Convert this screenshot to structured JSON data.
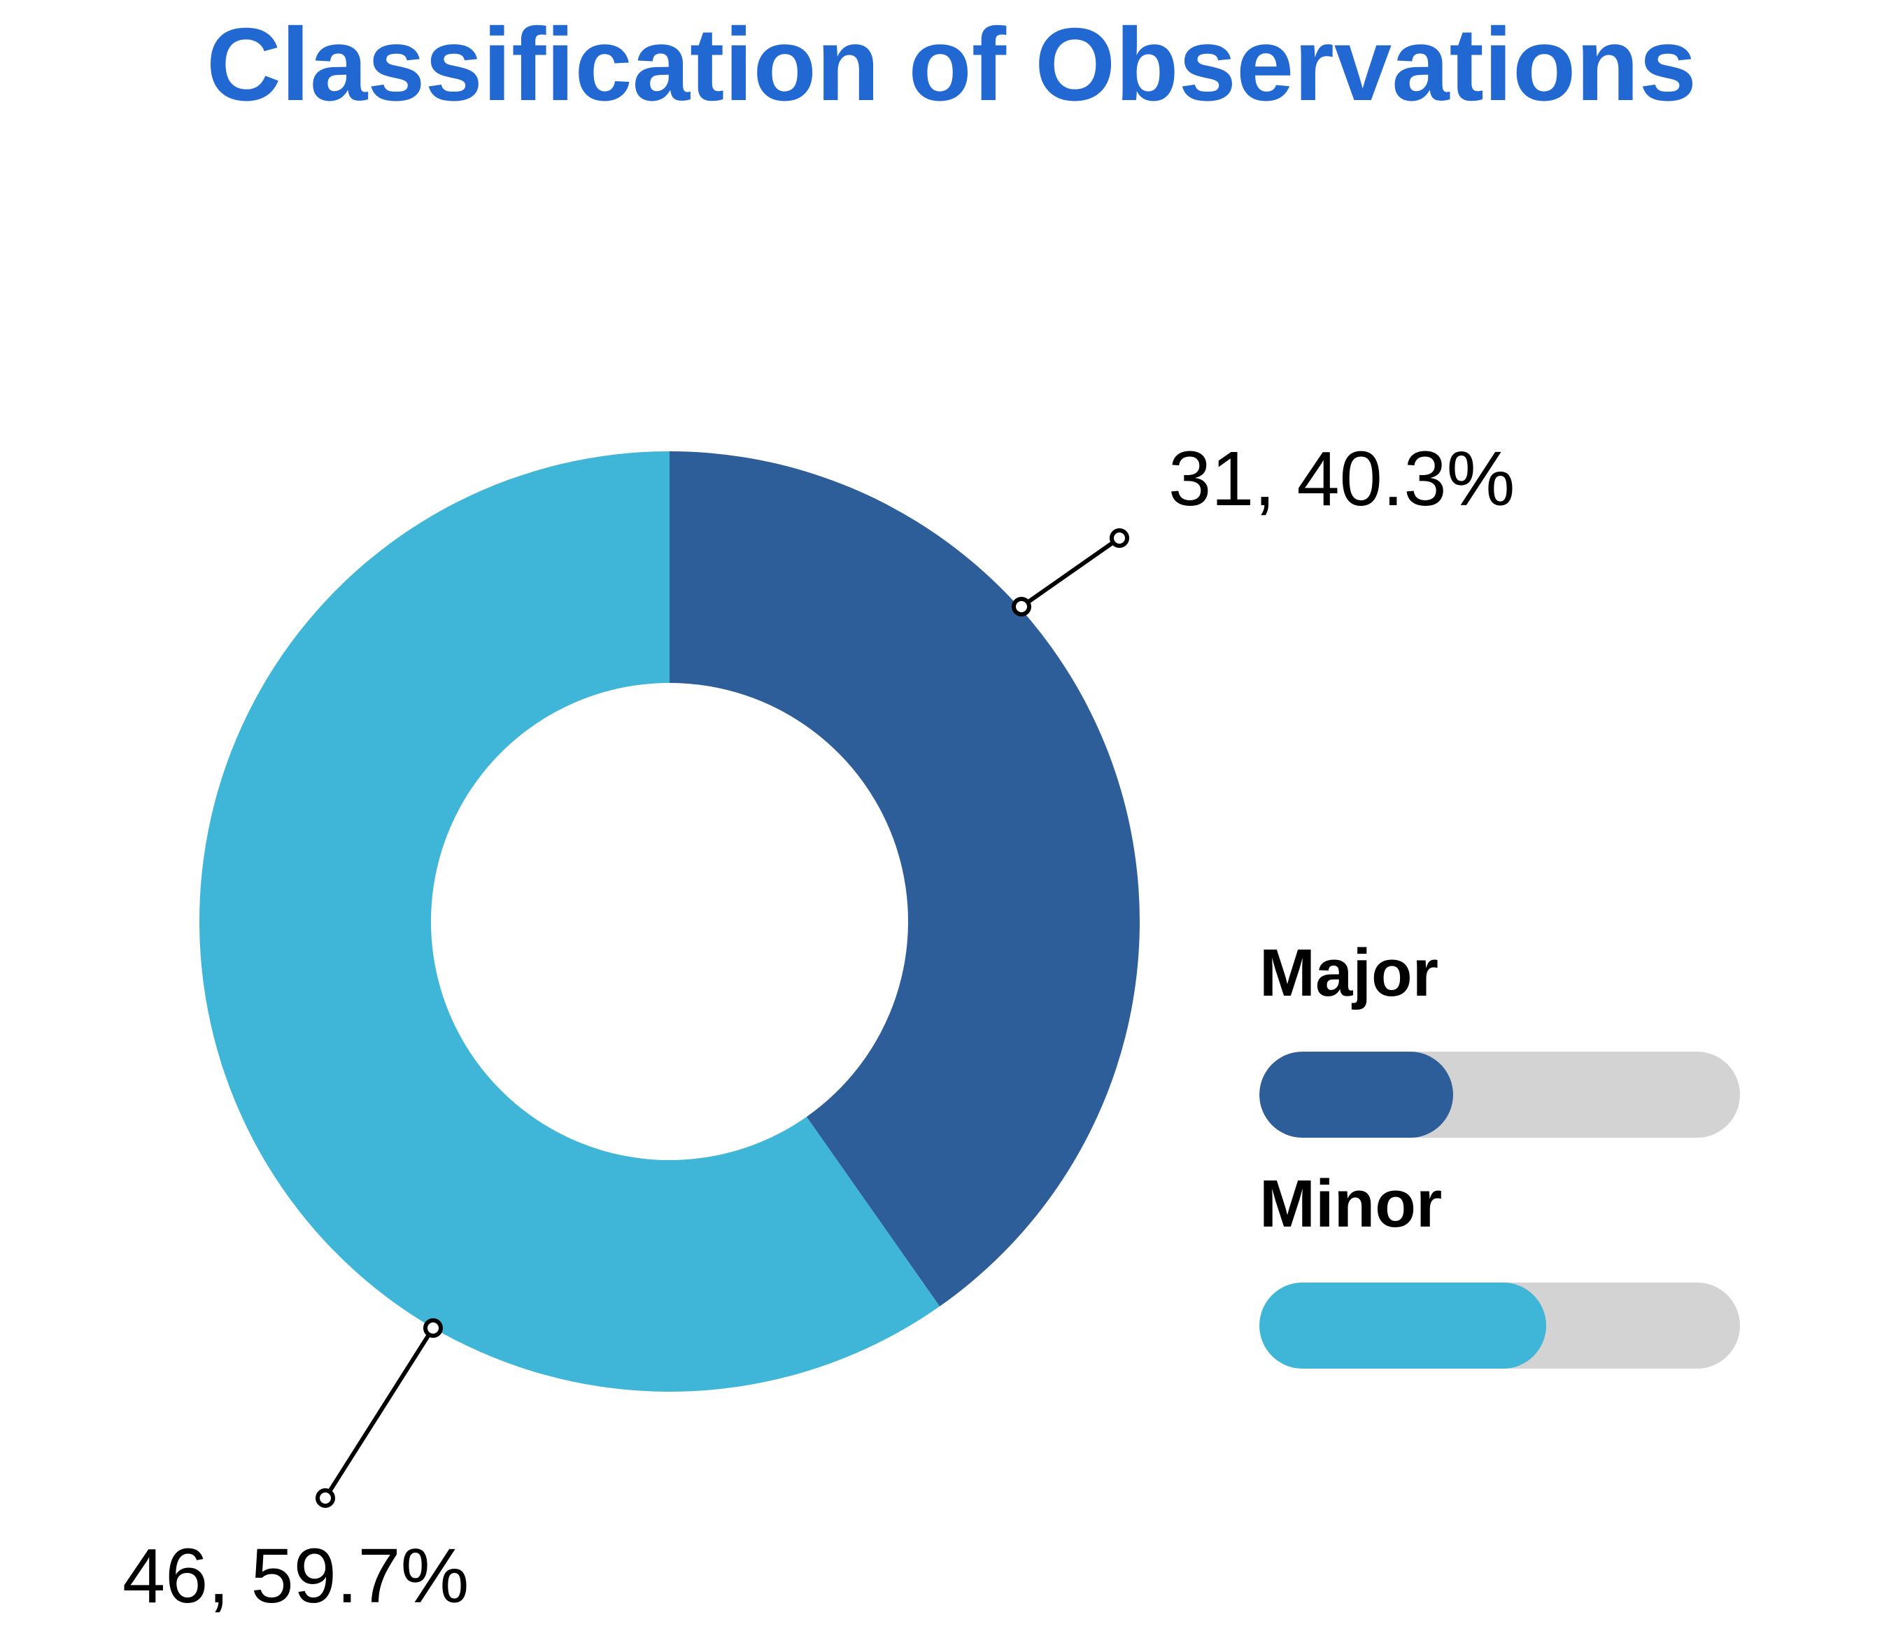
{
  "title": {
    "text": "Classification of Observations",
    "color": "#2268D2"
  },
  "chart_data": {
    "type": "pie",
    "subtype": "donut",
    "title": "Classification of Observations",
    "categories": [
      "Major",
      "Minor"
    ],
    "values": [
      31,
      46
    ],
    "percents": [
      40.3,
      59.7
    ],
    "slices": [
      {
        "name": "Major",
        "value": 31,
        "pct": 40.3,
        "label": "31, 40.3%",
        "color": "#2E5E9A"
      },
      {
        "name": "Minor",
        "value": 46,
        "pct": 59.7,
        "label": "46, 59.7%",
        "color": "#3FB6D8"
      }
    ],
    "start_angle_deg": 0,
    "direction": "clockwise",
    "inner_radius_ratio": 0.507,
    "legend_position": "right",
    "data_label_format": "value, percent"
  },
  "legend": {
    "track_color": "#D3D3D3",
    "items": [
      {
        "label": "Major"
      },
      {
        "label": "Minor"
      }
    ]
  }
}
